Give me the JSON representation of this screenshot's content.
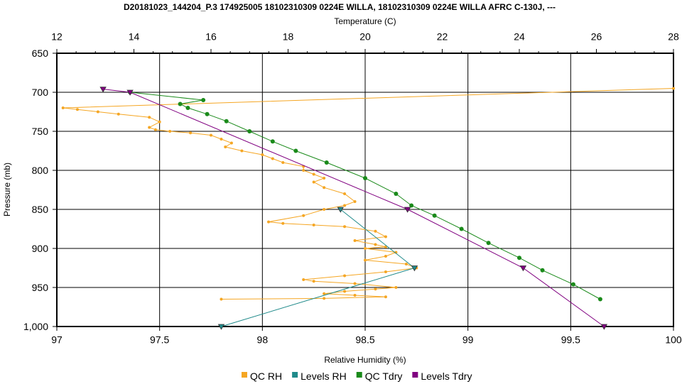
{
  "chart_data": {
    "type": "line",
    "title": "D20181023_144204_P.3 174925005 18102310309 0224E WILLA, 18102310309 0224E WILLA AFRC C-130J, ---",
    "top_axis_label": "Temperature (C)",
    "xlabel": "Relative Humidity (%)",
    "ylabel": "Pressure (mb)",
    "x_bottom_lim": [
      97,
      100
    ],
    "x_top_lim": [
      12,
      28
    ],
    "ylim": [
      650,
      1000
    ],
    "y_inverted": true,
    "grid": true,
    "legend_position": "bottom",
    "bottom_ticks": [
      "97",
      "97.5",
      "98",
      "98.5",
      "99",
      "99.5",
      "100"
    ],
    "bottom_tick_values": [
      97,
      97.5,
      98,
      98.5,
      99,
      99.5,
      100
    ],
    "top_ticks": [
      "12",
      "14",
      "16",
      "18",
      "20",
      "22",
      "24",
      "26",
      "28"
    ],
    "top_tick_values": [
      12,
      14,
      16,
      18,
      20,
      22,
      24,
      26,
      28
    ],
    "y_ticks": [
      "650",
      "700",
      "750",
      "800",
      "850",
      "900",
      "950",
      "1,000"
    ],
    "y_tick_values": [
      650,
      700,
      750,
      800,
      850,
      900,
      950,
      1000
    ],
    "series": [
      {
        "name": "QC RH",
        "color": "#F5A623",
        "axis": "bottom",
        "marker": "dot",
        "x": [
          100.0,
          97.03,
          97.1,
          97.2,
          97.3,
          97.45,
          97.5,
          97.45,
          97.48,
          97.55,
          97.65,
          97.75,
          97.8,
          97.85,
          97.82,
          97.9,
          98.0,
          98.05,
          98.1,
          98.2,
          98.2,
          98.25,
          98.3,
          98.25,
          98.3,
          98.4,
          98.45,
          98.4,
          98.3,
          98.2,
          98.03,
          98.1,
          98.25,
          98.4,
          98.55,
          98.6,
          98.45,
          98.55,
          98.6,
          98.5,
          98.65,
          98.6,
          98.5,
          98.7,
          98.75,
          98.6,
          98.4,
          98.2,
          98.25,
          98.45,
          98.65,
          98.55,
          98.4,
          98.3,
          98.45,
          98.6,
          98.3,
          97.8
        ],
        "y": [
          695,
          720,
          722,
          725,
          728,
          732,
          738,
          745,
          748,
          750,
          752,
          755,
          760,
          765,
          770,
          775,
          780,
          785,
          790,
          795,
          800,
          805,
          810,
          815,
          822,
          830,
          840,
          845,
          850,
          858,
          866,
          868,
          870,
          872,
          878,
          885,
          890,
          895,
          898,
          900,
          905,
          910,
          915,
          920,
          925,
          930,
          935,
          940,
          942,
          945,
          950,
          952,
          955,
          958,
          960,
          962,
          964,
          965
        ]
      },
      {
        "name": "Levels RH",
        "color": "#1F8A8A",
        "axis": "bottom",
        "marker": "triangle",
        "x": [
          98.38,
          98.74,
          97.8
        ],
        "y": [
          850,
          925,
          1000
        ]
      },
      {
        "name": "QC Tdry",
        "color": "#1A8A1A",
        "axis": "top",
        "marker": "dot",
        "x": [
          13.9,
          15.8,
          15.2,
          15.4,
          15.9,
          16.4,
          17.0,
          17.6,
          18.2,
          19.0,
          20.0,
          20.8,
          21.2,
          21.8,
          22.5,
          23.2,
          24.0,
          24.6,
          25.4,
          26.1
        ],
        "y": [
          700,
          710,
          715,
          720,
          728,
          737,
          750,
          763,
          775,
          790,
          810,
          830,
          845,
          858,
          875,
          893,
          912,
          928,
          946,
          965
        ]
      },
      {
        "name": "Levels Tdry",
        "color": "#800080",
        "axis": "top",
        "marker": "triangle",
        "x": [
          13.2,
          13.9,
          21.1,
          24.1,
          26.2
        ],
        "y": [
          696,
          700,
          850,
          925,
          1000
        ]
      }
    ]
  }
}
